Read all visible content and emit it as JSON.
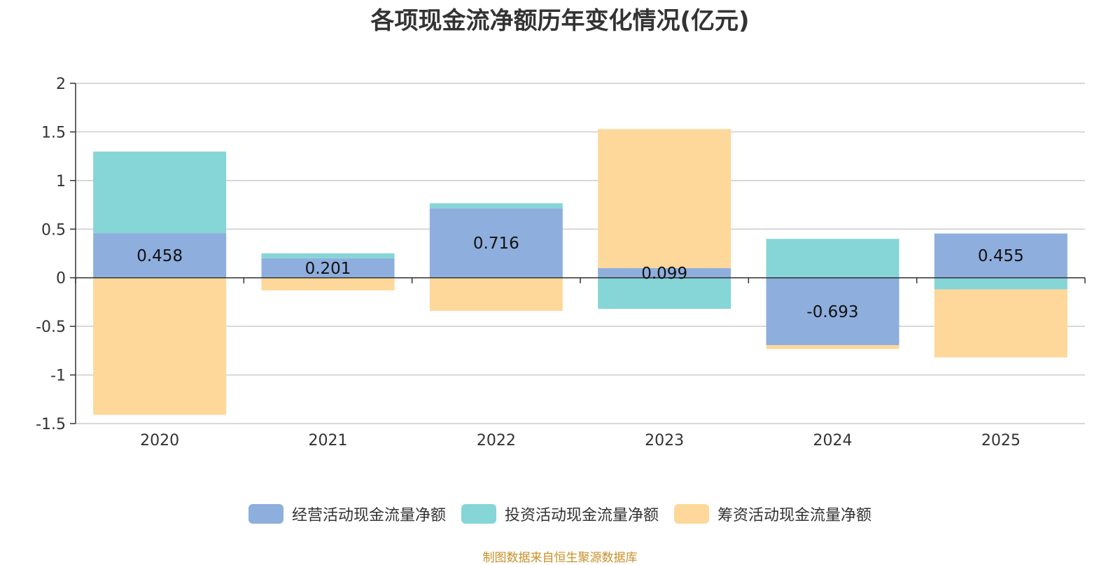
{
  "chart_data": {
    "type": "bar",
    "stacked": true,
    "title": "各项现金流净额历年变化情况(亿元)",
    "categories": [
      "2020",
      "2021",
      "2022",
      "2023",
      "2024",
      "2025"
    ],
    "series": [
      {
        "name": "经营活动现金流量净额",
        "color": "#8eaedd",
        "values": [
          0.458,
          0.201,
          0.716,
          0.099,
          -0.693,
          0.455
        ]
      },
      {
        "name": "投资活动现金流量净额",
        "color": "#86d5d7",
        "values": [
          0.84,
          0.05,
          0.05,
          -0.32,
          0.4,
          -0.12
        ]
      },
      {
        "name": "筹资活动现金流量净额",
        "color": "#fdd89a",
        "values": [
          -1.41,
          -0.13,
          -0.34,
          1.43,
          -0.04,
          -0.7
        ]
      }
    ],
    "data_labels": [
      "0.458",
      "0.201",
      "0.716",
      "0.099",
      "-0.693",
      "0.455"
    ],
    "yticks": [
      "2",
      "1.5",
      "1",
      "0.5",
      "0",
      "-0.5",
      "-1",
      "-1.5"
    ],
    "ylim": [
      -1.5,
      2
    ],
    "xlabel": "",
    "ylabel": "",
    "legend_position": "bottom"
  },
  "source_note": "制图数据来自恒生聚源数据库"
}
